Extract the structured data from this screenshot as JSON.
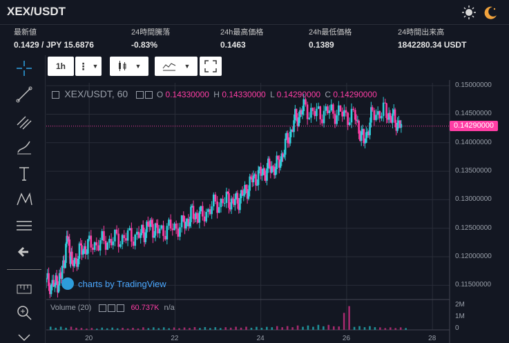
{
  "header": {
    "title": "XEX/USDT",
    "sun_icon": "sun-icon",
    "moon_icon": "moon-icon"
  },
  "stats": [
    {
      "label": "最新値",
      "value": "0.1429 / JPY 15.6876"
    },
    {
      "label": "24時間騰落",
      "value": "-0.83%"
    },
    {
      "label": "24h最高価格",
      "value": "0.1463"
    },
    {
      "label": "24h最低価格",
      "value": "0.1389"
    },
    {
      "label": "24時間出来高",
      "value": "1842280.34 USDT"
    }
  ],
  "toolbar": {
    "interval": "1h",
    "tools": [
      "crosshair-icon",
      "trendline-icon",
      "fib-icon",
      "brush-icon",
      "text-icon",
      "pattern-icon",
      "measure-icon",
      "back-arrow-icon",
      "ruler-icon",
      "zoom-icon",
      "chevron-down-icon"
    ]
  },
  "legend": {
    "symbol": "XEX/USDT, 60",
    "o_label": "O",
    "o": "0.14330000",
    "h_label": "H",
    "h": "0.14330000",
    "l_label": "L",
    "l": "0.14290000",
    "c_label": "C",
    "c": "0.14290000"
  },
  "volume_legend": {
    "label": "Volume (20)",
    "value": "60.737K",
    "extra": "n/a"
  },
  "credit": "charts by TradingView",
  "last_price": "0.14290000",
  "colors": {
    "up": "#2fd0dc",
    "down": "#ff3ea5",
    "grid": "#2a2e39",
    "bg": "#131722"
  },
  "chart_data": {
    "type": "candlestick",
    "interval": "60",
    "x_ticks": [
      "20",
      "22",
      "24",
      "26",
      "28"
    ],
    "y_ticks": [
      "0.15000000",
      "0.14500000",
      "0.14000000",
      "0.13500000",
      "0.13000000",
      "0.12500000",
      "0.12000000",
      "0.11500000"
    ],
    "ylim": [
      0.1125,
      0.1505
    ],
    "volume_ticks": [
      "2M",
      "1M",
      "0"
    ],
    "volume_max": 2000000,
    "xlim": [
      19.0,
      28.4
    ],
    "points": [
      {
        "x": 19.0,
        "y": 0.1155
      },
      {
        "x": 19.2,
        "y": 0.115
      },
      {
        "x": 19.35,
        "y": 0.1165
      },
      {
        "x": 19.5,
        "y": 0.1235
      },
      {
        "x": 19.6,
        "y": 0.1185
      },
      {
        "x": 19.8,
        "y": 0.121
      },
      {
        "x": 20.0,
        "y": 0.122
      },
      {
        "x": 20.3,
        "y": 0.1225
      },
      {
        "x": 20.6,
        "y": 0.123
      },
      {
        "x": 20.9,
        "y": 0.1235
      },
      {
        "x": 21.2,
        "y": 0.1238
      },
      {
        "x": 21.4,
        "y": 0.1255
      },
      {
        "x": 21.6,
        "y": 0.1245
      },
      {
        "x": 21.9,
        "y": 0.125
      },
      {
        "x": 22.2,
        "y": 0.1255
      },
      {
        "x": 22.4,
        "y": 0.1275
      },
      {
        "x": 22.6,
        "y": 0.127
      },
      {
        "x": 22.9,
        "y": 0.129
      },
      {
        "x": 23.2,
        "y": 0.13
      },
      {
        "x": 23.4,
        "y": 0.1295
      },
      {
        "x": 23.6,
        "y": 0.131
      },
      {
        "x": 23.8,
        "y": 0.1335
      },
      {
        "x": 24.0,
        "y": 0.1345
      },
      {
        "x": 24.2,
        "y": 0.1355
      },
      {
        "x": 24.4,
        "y": 0.136
      },
      {
        "x": 24.6,
        "y": 0.14
      },
      {
        "x": 24.8,
        "y": 0.144
      },
      {
        "x": 25.0,
        "y": 0.146
      },
      {
        "x": 25.3,
        "y": 0.145
      },
      {
        "x": 25.6,
        "y": 0.1455
      },
      {
        "x": 25.9,
        "y": 0.145
      },
      {
        "x": 26.2,
        "y": 0.1445
      },
      {
        "x": 26.4,
        "y": 0.14
      },
      {
        "x": 26.6,
        "y": 0.145
      },
      {
        "x": 26.9,
        "y": 0.1455
      },
      {
        "x": 27.1,
        "y": 0.144
      },
      {
        "x": 27.3,
        "y": 0.143
      }
    ],
    "volumes": [
      {
        "x": 19.5,
        "v": 250000
      },
      {
        "x": 20.0,
        "v": 150000
      },
      {
        "x": 20.5,
        "v": 180000
      },
      {
        "x": 21.0,
        "v": 160000
      },
      {
        "x": 21.5,
        "v": 200000
      },
      {
        "x": 22.0,
        "v": 190000
      },
      {
        "x": 22.5,
        "v": 220000
      },
      {
        "x": 23.0,
        "v": 210000
      },
      {
        "x": 23.5,
        "v": 250000
      },
      {
        "x": 24.0,
        "v": 240000
      },
      {
        "x": 24.5,
        "v": 300000
      },
      {
        "x": 25.0,
        "v": 350000
      },
      {
        "x": 25.5,
        "v": 400000
      },
      {
        "x": 26.0,
        "v": 1900000
      },
      {
        "x": 26.5,
        "v": 300000
      },
      {
        "x": 27.0,
        "v": 200000
      }
    ]
  }
}
